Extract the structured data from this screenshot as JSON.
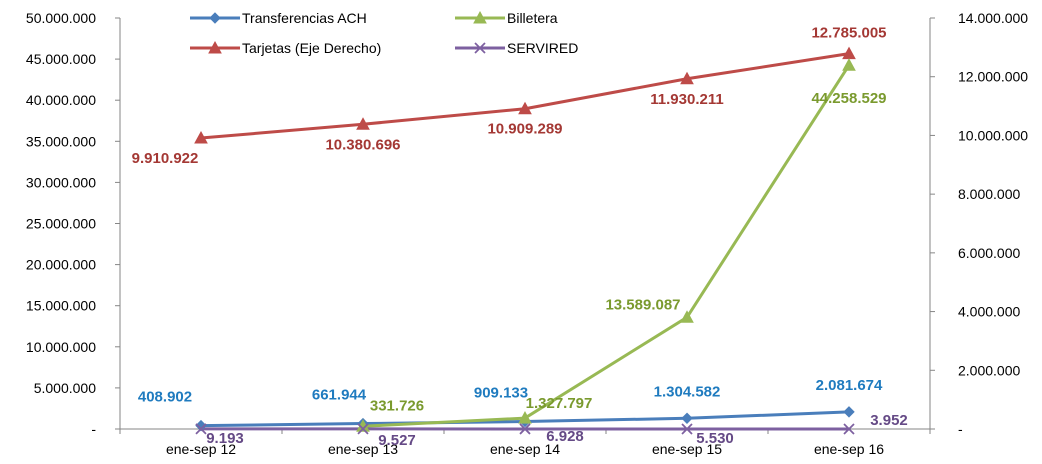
{
  "chart_data": {
    "type": "line",
    "title": "",
    "categories": [
      "ene-sep 12",
      "ene-sep 13",
      "ene-sep 14",
      "ene-sep 15",
      "ene-sep 16"
    ],
    "y_left": {
      "ylim": [
        0,
        50000000
      ],
      "ticks": [
        {
          "value": 0,
          "label": "-"
        },
        {
          "value": 5000000,
          "label": "5.000.000"
        },
        {
          "value": 10000000,
          "label": "10.000.000"
        },
        {
          "value": 15000000,
          "label": "15.000.000"
        },
        {
          "value": 20000000,
          "label": "20.000.000"
        },
        {
          "value": 25000000,
          "label": "25.000.000"
        },
        {
          "value": 30000000,
          "label": "30.000.000"
        },
        {
          "value": 35000000,
          "label": "35.000.000"
        },
        {
          "value": 40000000,
          "label": "40.000.000"
        },
        {
          "value": 45000000,
          "label": "45.000.000"
        },
        {
          "value": 50000000,
          "label": "50.000.000"
        }
      ]
    },
    "y_right": {
      "ylim": [
        0,
        14000000
      ],
      "ticks": [
        {
          "value": 0,
          "label": "-"
        },
        {
          "value": 2000000,
          "label": "2.000.000"
        },
        {
          "value": 4000000,
          "label": "4.000.000"
        },
        {
          "value": 6000000,
          "label": "6.000.000"
        },
        {
          "value": 8000000,
          "label": "8.000.000"
        },
        {
          "value": 10000000,
          "label": "10.000.000"
        },
        {
          "value": 12000000,
          "label": "12.000.000"
        },
        {
          "value": 14000000,
          "label": "14.000.000"
        }
      ]
    },
    "series": [
      {
        "name": "Transferencias ACH",
        "axis": "left",
        "color": "#4a7ebb",
        "label_color": "#1f7bbf",
        "marker": "diamond",
        "values": [
          408902,
          661944,
          909133,
          1304582,
          2081674
        ],
        "labels": [
          "408.902",
          "661.944",
          "909.133",
          "1.304.582",
          "2.081.674"
        ]
      },
      {
        "name": "Tarjetas (Eje Derecho)",
        "axis": "right",
        "color": "#be4b48",
        "label_color": "#a43834",
        "marker": "triangle",
        "values": [
          9910922,
          10380696,
          10909289,
          11930211,
          12785005
        ],
        "labels": [
          "9.910.922",
          "10.380.696",
          "10.909.289",
          "11.930.211",
          "12.785.005"
        ]
      },
      {
        "name": "Billetera",
        "axis": "left",
        "color": "#98b954",
        "label_color": "#7a9a2e",
        "marker": "triangle",
        "values": [
          null,
          331726,
          1327797,
          13589087,
          44258529
        ],
        "labels": [
          null,
          "331.726",
          "1.327.797",
          "13.589.087",
          "44.258.529"
        ]
      },
      {
        "name": "SERVIRED",
        "axis": "left",
        "color": "#7d60a0",
        "label_color": "#654a86",
        "marker": "x",
        "values": [
          9193,
          9527,
          6928,
          5530,
          3952
        ],
        "labels": [
          "9.193",
          "9.527",
          "6.928",
          "5.530",
          "3.952"
        ]
      }
    ],
    "legend": {
      "placement": "top",
      "order": [
        "Transferencias ACH",
        "Billetera",
        "Tarjetas (Eje Derecho)",
        "SERVIRED"
      ]
    },
    "grid": false
  }
}
